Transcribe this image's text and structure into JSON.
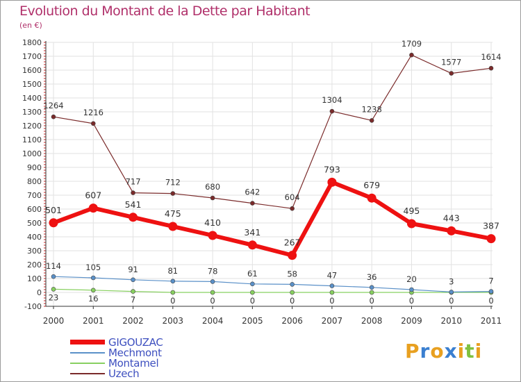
{
  "title": "Evolution du Montant de la Dette par Habitant",
  "subtitle": "(en €)",
  "brand": {
    "letters": [
      "P",
      "r",
      "o",
      "x",
      "i",
      "t",
      "i"
    ],
    "colors": [
      "#e8a020",
      "#3a7fd0",
      "#e8a020",
      "#3a7fd0",
      "#e8a020",
      "#80c040",
      "#e8a020"
    ]
  },
  "chart_data": {
    "type": "line",
    "categories": [
      "2000",
      "2001",
      "2002",
      "2003",
      "2004",
      "2005",
      "2006",
      "2007",
      "2008",
      "2009",
      "2010",
      "2011"
    ],
    "ylim": [
      -100,
      1800
    ],
    "yticks": [
      -100,
      0,
      100,
      200,
      300,
      400,
      500,
      600,
      700,
      800,
      900,
      1000,
      1100,
      1200,
      1300,
      1400,
      1500,
      1600,
      1700,
      1800
    ],
    "grid": true,
    "legend_position": "bottom-left",
    "series": [
      {
        "name": "Uzech",
        "color": "#7a2a2a",
        "values": [
          1264,
          1216,
          717,
          712,
          680,
          642,
          604,
          1304,
          1238,
          1709,
          1577,
          1614
        ]
      },
      {
        "name": "GIGOUZAC",
        "color": "#ee1111",
        "values": [
          501,
          607,
          541,
          475,
          410,
          341,
          267,
          793,
          679,
          495,
          443,
          387
        ]
      },
      {
        "name": "Mechmont",
        "color": "#5a90c8",
        "values": [
          114,
          105,
          91,
          81,
          78,
          61,
          58,
          47,
          36,
          20,
          3,
          7
        ]
      },
      {
        "name": "Montamel",
        "color": "#88d060",
        "values": [
          23,
          16,
          7,
          0,
          0,
          0,
          0,
          0,
          0,
          0,
          0,
          0
        ]
      }
    ]
  }
}
